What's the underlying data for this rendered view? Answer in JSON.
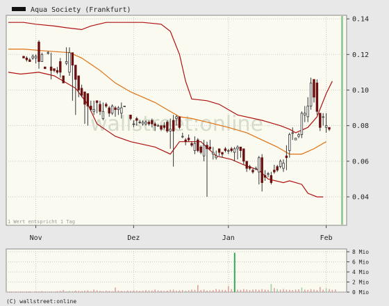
{
  "chart_data": {
    "type": "candlestick",
    "title": "Aqua Society (Frankfurt)",
    "watermark": "wallstreet:online",
    "note": "1 Wert entspricht 1 Tag",
    "footer": "(C) wallstreet:online",
    "x_labels": [
      {
        "label": "Nov",
        "day": 9
      },
      {
        "label": "Dez",
        "day": 41
      },
      {
        "label": "Jan",
        "day": 72
      },
      {
        "label": "Feb",
        "day": 104
      }
    ],
    "y_ticks": [
      {
        "value": 0.04,
        "label": "0.04"
      },
      {
        "value": 0.06,
        "label": "0.06"
      },
      {
        "value": 0.08,
        "label": "0.08"
      },
      {
        "value": 0.1,
        "label": "0.10"
      },
      {
        "value": 0.12,
        "label": "0.12"
      },
      {
        "value": 0.14,
        "label": "0.14"
      }
    ],
    "ylim": [
      0.024,
      0.142
    ],
    "xlim": [
      0,
      110
    ],
    "colors": {
      "bollinger": "#b01010",
      "moving_average": "#e07010",
      "up": "#ffffff",
      "down": "#6b1010",
      "wick": "#333333",
      "vol_normal": "#e0a0a0",
      "vol_up": "#a0d0a0",
      "vol_peak": "#33aa55",
      "plot_bg": "#fafaf0",
      "accent_bar": "#99cc99"
    },
    "bollinger_upper": [
      [
        0,
        0.138
      ],
      [
        5,
        0.138
      ],
      [
        9,
        0.137
      ],
      [
        15,
        0.136
      ],
      [
        19,
        0.135
      ],
      [
        24,
        0.134
      ],
      [
        27,
        0.136
      ],
      [
        32,
        0.138
      ],
      [
        37,
        0.138
      ],
      [
        44,
        0.138
      ],
      [
        50,
        0.137
      ],
      [
        53,
        0.133
      ],
      [
        56,
        0.12
      ],
      [
        58,
        0.105
      ],
      [
        60,
        0.095
      ],
      [
        65,
        0.094
      ],
      [
        69,
        0.092
      ],
      [
        75,
        0.086
      ],
      [
        83,
        0.083
      ],
      [
        89,
        0.08
      ],
      [
        92,
        0.078
      ],
      [
        94,
        0.076
      ],
      [
        98,
        0.079
      ],
      [
        101,
        0.085
      ],
      [
        104,
        0.098
      ],
      [
        106,
        0.105
      ]
    ],
    "bollinger_lower": [
      [
        0,
        0.11
      ],
      [
        4,
        0.109
      ],
      [
        10,
        0.11
      ],
      [
        15,
        0.108
      ],
      [
        22,
        0.101
      ],
      [
        26,
        0.092
      ],
      [
        29,
        0.081
      ],
      [
        35,
        0.074
      ],
      [
        40,
        0.071
      ],
      [
        48,
        0.068
      ],
      [
        53,
        0.064
      ],
      [
        56,
        0.071
      ],
      [
        63,
        0.071
      ],
      [
        68,
        0.063
      ],
      [
        73,
        0.061
      ],
      [
        77,
        0.058
      ],
      [
        82,
        0.055
      ],
      [
        85,
        0.05
      ],
      [
        90,
        0.048
      ],
      [
        92,
        0.049
      ],
      [
        96,
        0.047
      ],
      [
        98,
        0.042
      ],
      [
        101,
        0.04
      ],
      [
        103,
        0.04
      ]
    ],
    "moving_average": [
      [
        0,
        0.123
      ],
      [
        5,
        0.123
      ],
      [
        12,
        0.122
      ],
      [
        20,
        0.121
      ],
      [
        24,
        0.118
      ],
      [
        30,
        0.111
      ],
      [
        35,
        0.104
      ],
      [
        40,
        0.099
      ],
      [
        48,
        0.093
      ],
      [
        56,
        0.085
      ],
      [
        60,
        0.084
      ],
      [
        65,
        0.082
      ],
      [
        72,
        0.079
      ],
      [
        78,
        0.076
      ],
      [
        83,
        0.072
      ],
      [
        88,
        0.068
      ],
      [
        92,
        0.064
      ],
      [
        96,
        0.064
      ],
      [
        100,
        0.067
      ],
      [
        104,
        0.071
      ]
    ],
    "candles": [
      [
        5,
        0.119,
        0.119,
        0.119,
        0.118
      ],
      [
        6,
        0.118,
        0.119,
        0.116,
        0.117
      ],
      [
        7,
        0.117,
        0.118,
        0.116,
        0.116
      ],
      [
        8,
        0.118,
        0.12,
        0.117,
        0.119
      ],
      [
        9,
        0.118,
        0.12,
        0.115,
        0.119
      ],
      [
        10,
        0.127,
        0.128,
        0.112,
        0.116
      ],
      [
        11,
        0.116,
        0.121,
        0.116,
        0.12
      ],
      [
        12,
        0.113,
        0.113,
        0.112,
        0.112
      ],
      [
        13,
        0.121,
        0.122,
        0.12,
        0.121
      ],
      [
        14,
        0.113,
        0.121,
        0.106,
        0.111
      ],
      [
        15,
        0.112,
        0.112,
        0.11,
        0.111
      ],
      [
        16,
        0.111,
        0.113,
        0.109,
        0.11
      ],
      [
        17,
        0.116,
        0.118,
        0.107,
        0.11
      ],
      [
        18,
        0.108,
        0.108,
        0.104,
        0.104
      ],
      [
        19,
        0.115,
        0.124,
        0.114,
        0.116
      ],
      [
        20,
        0.11,
        0.124,
        0.108,
        0.121
      ],
      [
        21,
        0.121,
        0.121,
        0.094,
        0.114
      ],
      [
        22,
        0.114,
        0.114,
        0.086,
        0.106
      ],
      [
        23,
        0.108,
        0.108,
        0.096,
        0.1
      ],
      [
        24,
        0.101,
        0.103,
        0.096,
        0.097
      ],
      [
        25,
        0.099,
        0.099,
        0.081,
        0.092
      ],
      [
        26,
        0.098,
        0.098,
        0.08,
        0.091
      ],
      [
        27,
        0.091,
        0.094,
        0.088,
        0.089
      ],
      [
        28,
        0.088,
        0.094,
        0.086,
        0.089
      ],
      [
        29,
        0.094,
        0.094,
        0.087,
        0.093
      ],
      [
        30,
        0.092,
        0.094,
        0.086,
        0.088
      ],
      [
        31,
        0.084,
        0.093,
        0.083,
        0.088
      ],
      [
        32,
        0.092,
        0.093,
        0.09,
        0.091
      ],
      [
        33,
        0.09,
        0.091,
        0.085,
        0.087
      ],
      [
        34,
        0.087,
        0.092,
        0.086,
        0.091
      ],
      [
        35,
        0.09,
        0.091,
        0.085,
        0.089
      ],
      [
        36,
        0.089,
        0.091,
        0.086,
        0.09
      ],
      [
        37,
        0.087,
        0.093,
        0.084,
        0.09
      ],
      [
        38,
        0.091,
        0.091,
        0.091,
        0.091
      ],
      [
        40,
        0.086,
        0.086,
        0.083,
        0.084
      ],
      [
        41,
        0.081,
        0.083,
        0.079,
        0.081
      ],
      [
        42,
        0.084,
        0.085,
        0.08,
        0.083
      ],
      [
        43,
        0.082,
        0.083,
        0.081,
        0.082
      ],
      [
        44,
        0.081,
        0.083,
        0.08,
        0.082
      ],
      [
        45,
        0.081,
        0.083,
        0.08,
        0.082
      ],
      [
        46,
        0.082,
        0.083,
        0.08,
        0.081
      ],
      [
        47,
        0.083,
        0.084,
        0.079,
        0.081
      ],
      [
        48,
        0.081,
        0.082,
        0.077,
        0.08
      ],
      [
        49,
        0.08,
        0.081,
        0.08,
        0.08
      ],
      [
        50,
        0.08,
        0.08,
        0.077,
        0.078
      ],
      [
        51,
        0.08,
        0.082,
        0.078,
        0.079
      ],
      [
        52,
        0.082,
        0.083,
        0.076,
        0.077
      ],
      [
        53,
        0.077,
        0.084,
        0.067,
        0.078
      ],
      [
        54,
        0.083,
        0.086,
        0.057,
        0.077
      ],
      [
        55,
        0.084,
        0.086,
        0.08,
        0.085
      ],
      [
        56,
        0.085,
        0.085,
        0.078,
        0.079
      ],
      [
        57,
        0.074,
        0.076,
        0.073,
        0.074
      ],
      [
        58,
        0.072,
        0.073,
        0.069,
        0.071
      ],
      [
        59,
        0.073,
        0.075,
        0.071,
        0.072
      ],
      [
        60,
        0.07,
        0.071,
        0.068,
        0.069
      ],
      [
        61,
        0.066,
        0.074,
        0.064,
        0.07
      ],
      [
        62,
        0.072,
        0.073,
        0.065,
        0.066
      ],
      [
        63,
        0.068,
        0.069,
        0.064,
        0.065
      ],
      [
        64,
        0.063,
        0.072,
        0.06,
        0.069
      ],
      [
        65,
        0.069,
        0.071,
        0.04,
        0.067
      ],
      [
        66,
        0.068,
        0.072,
        0.066,
        0.067
      ],
      [
        67,
        0.064,
        0.068,
        0.061,
        0.065
      ],
      [
        68,
        0.062,
        0.066,
        0.061,
        0.063
      ],
      [
        69,
        0.067,
        0.067,
        0.063,
        0.065
      ],
      [
        70,
        0.065,
        0.065,
        0.062,
        0.064
      ],
      [
        71,
        0.067,
        0.068,
        0.065,
        0.066
      ],
      [
        72,
        0.066,
        0.067,
        0.064,
        0.066
      ],
      [
        73,
        0.067,
        0.068,
        0.065,
        0.066
      ],
      [
        74,
        0.065,
        0.068,
        0.06,
        0.067
      ],
      [
        75,
        0.067,
        0.069,
        0.061,
        0.068
      ],
      [
        76,
        0.068,
        0.068,
        0.062,
        0.066
      ],
      [
        77,
        0.067,
        0.067,
        0.058,
        0.06
      ],
      [
        78,
        0.06,
        0.06,
        0.054,
        0.056
      ],
      [
        79,
        0.057,
        0.058,
        0.055,
        0.056
      ],
      [
        80,
        0.055,
        0.056,
        0.053,
        0.054
      ],
      [
        81,
        0.056,
        0.057,
        0.055,
        0.056
      ],
      [
        82,
        0.054,
        0.063,
        0.047,
        0.062
      ],
      [
        83,
        0.062,
        0.064,
        0.043,
        0.048
      ],
      [
        84,
        0.052,
        0.055,
        0.049,
        0.051
      ],
      [
        85,
        0.053,
        0.054,
        0.051,
        0.053
      ],
      [
        86,
        0.052,
        0.054,
        0.047,
        0.048
      ],
      [
        87,
        0.055,
        0.058,
        0.053,
        0.054
      ],
      [
        88,
        0.057,
        0.058,
        0.054,
        0.055
      ],
      [
        89,
        0.057,
        0.061,
        0.056,
        0.06
      ],
      [
        90,
        0.056,
        0.061,
        0.054,
        0.059
      ],
      [
        91,
        0.063,
        0.069,
        0.055,
        0.062
      ],
      [
        92,
        0.066,
        0.076,
        0.062,
        0.075
      ],
      [
        93,
        0.076,
        0.079,
        0.072,
        0.076
      ],
      [
        94,
        0.072,
        0.073,
        0.072,
        0.073
      ],
      [
        95,
        0.074,
        0.076,
        0.073,
        0.075
      ],
      [
        96,
        0.075,
        0.088,
        0.073,
        0.087
      ],
      [
        97,
        0.086,
        0.091,
        0.082,
        0.087
      ],
      [
        98,
        0.085,
        0.096,
        0.082,
        0.091
      ],
      [
        99,
        0.091,
        0.107,
        0.089,
        0.104
      ],
      [
        100,
        0.106,
        0.106,
        0.093,
        0.096
      ],
      [
        101,
        0.104,
        0.106,
        0.086,
        0.088
      ],
      [
        102,
        0.087,
        0.087,
        0.077,
        0.079
      ],
      [
        103,
        0.085,
        0.087,
        0.08,
        0.085
      ],
      [
        104,
        0.079,
        0.087,
        0.076,
        0.08
      ],
      [
        105,
        0.079,
        0.079,
        0.077,
        0.078
      ]
    ],
    "volume_ticks": [
      {
        "value": 0,
        "label": "0 Mio"
      },
      {
        "value": 2,
        "label": "2 Mio"
      },
      {
        "value": 4,
        "label": "4 Mio"
      },
      {
        "value": 6,
        "label": "6 Mio"
      },
      {
        "value": 8,
        "label": "8 Mio"
      }
    ],
    "volume_ylim": [
      0,
      8
    ],
    "volume": [
      0.1,
      0.15,
      0.1,
      0.1,
      0.15,
      0.1,
      0.15,
      0.15,
      0.1,
      0.1,
      0.15,
      0.2,
      0.15,
      0.1,
      0.15,
      0.1,
      0.2,
      0.25,
      0.4,
      0.15,
      0.25,
      0.2,
      0.3,
      0.25,
      0.2,
      0.3,
      0.35,
      0.2,
      0.5,
      0.35,
      0.25,
      0.2,
      0.3,
      0.25,
      0.2,
      0.9,
      0.3,
      0.25,
      0.2,
      0.3,
      0.25,
      0.35,
      0.3,
      0.25,
      0.3,
      0.4,
      0.35,
      0.3,
      0.5,
      0.35,
      0.3,
      0.25,
      0.3,
      0.45,
      0.5,
      0.3,
      0.35,
      0.4,
      0.3,
      0.35,
      0.5,
      0.45,
      1.4,
      0.4,
      0.5,
      0.3,
      0.35,
      0.4,
      0.6,
      0.5,
      0.45,
      0.4,
      1.2,
      0.6,
      7.8,
      0.5,
      0.45,
      0.6,
      0.5,
      0.4,
      0.5,
      0.55,
      0.45,
      0.6,
      0.5,
      0.45,
      1.6,
      0.8,
      0.6,
      0.5,
      0.6,
      0.5,
      0.45,
      0.4,
      0.5,
      0.55,
      0.9,
      0.5,
      0.45,
      0.6,
      0.5,
      0.4,
      1.0,
      0.5,
      0.8,
      0.6,
      0.45,
      0.5
    ],
    "volume_up_days": [
      13,
      20,
      58,
      74,
      86,
      88,
      96,
      104
    ],
    "volume_peak_day": 74
  }
}
